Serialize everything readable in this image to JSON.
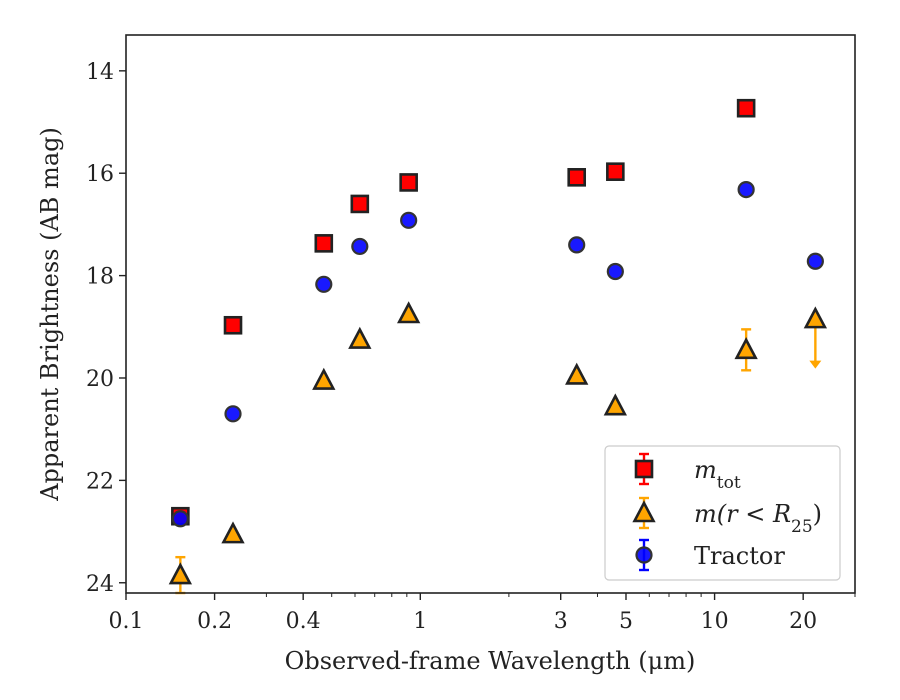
{
  "chart_data": {
    "type": "scatter",
    "xscale": "log",
    "yinverted": true,
    "xlim": [
      0.1,
      30
    ],
    "ylim": [
      24.2,
      13.3
    ],
    "xlabel": "Observed-frame Wavelength (μm)",
    "ylabel": "Apparent Brightness (AB mag)",
    "xticks": [
      {
        "v": 0.1,
        "label": "0.1"
      },
      {
        "v": 0.2,
        "label": "0.2"
      },
      {
        "v": 0.4,
        "label": "0.4"
      },
      {
        "v": 1,
        "label": "1"
      },
      {
        "v": 3,
        "label": "3"
      },
      {
        "v": 5,
        "label": "5"
      },
      {
        "v": 10,
        "label": "10"
      },
      {
        "v": 20,
        "label": "20"
      }
    ],
    "yticks": [
      {
        "v": 14,
        "label": "14"
      },
      {
        "v": 16,
        "label": "16"
      },
      {
        "v": 18,
        "label": "18"
      },
      {
        "v": 20,
        "label": "20"
      },
      {
        "v": 22,
        "label": "22"
      },
      {
        "v": 24,
        "label": "24"
      }
    ],
    "legend_position": "lower right",
    "series": [
      {
        "name": "m_tot",
        "marker": "square",
        "color": "#ff0000",
        "ecolor": "#ff0000",
        "points": [
          {
            "x": 0.153,
            "y": 22.7
          },
          {
            "x": 0.231,
            "y": 18.97
          },
          {
            "x": 0.47,
            "y": 17.37
          },
          {
            "x": 0.623,
            "y": 16.6
          },
          {
            "x": 0.913,
            "y": 16.18
          },
          {
            "x": 3.4,
            "y": 16.08
          },
          {
            "x": 4.6,
            "y": 15.97
          },
          {
            "x": 12.8,
            "y": 14.73
          }
        ]
      },
      {
        "name": "m(r < R_25)",
        "marker": "triangle",
        "color": "#ffa500",
        "ecolor": "#ffa500",
        "points": [
          {
            "x": 0.153,
            "y": 23.85,
            "yerr": 0.35
          },
          {
            "x": 0.231,
            "y": 23.05
          },
          {
            "x": 0.47,
            "y": 20.05
          },
          {
            "x": 0.623,
            "y": 19.25
          },
          {
            "x": 0.913,
            "y": 18.75
          },
          {
            "x": 3.4,
            "y": 19.95
          },
          {
            "x": 4.6,
            "y": 20.55
          },
          {
            "x": 12.8,
            "y": 19.45,
            "yerr": 0.4
          },
          {
            "x": 22.0,
            "y": 18.85,
            "upper_limit": true
          }
        ]
      },
      {
        "name": "Tractor",
        "marker": "circle",
        "color": "#0000ff",
        "ecolor": "#0000ff",
        "points": [
          {
            "x": 0.153,
            "y": 22.75
          },
          {
            "x": 0.231,
            "y": 20.7
          },
          {
            "x": 0.47,
            "y": 18.17
          },
          {
            "x": 0.623,
            "y": 17.43
          },
          {
            "x": 0.913,
            "y": 16.92
          },
          {
            "x": 3.4,
            "y": 17.4
          },
          {
            "x": 4.6,
            "y": 17.92
          },
          {
            "x": 12.8,
            "y": 16.32
          },
          {
            "x": 22.0,
            "y": 17.72
          }
        ]
      }
    ],
    "legend": [
      {
        "marker": "square",
        "color": "#ff0000",
        "ecolor": "#ff0000",
        "label_main": "m",
        "label_sub": "tot",
        "label_tail": ""
      },
      {
        "marker": "triangle",
        "color": "#ffa500",
        "ecolor": "#ffa500",
        "label_main": "m(r < R",
        "label_sub": "25",
        "label_tail": ")"
      },
      {
        "marker": "circle",
        "color": "#0000ff",
        "ecolor": "#0000ff",
        "label_main": "Tractor",
        "label_sub": "",
        "label_tail": ""
      }
    ]
  }
}
